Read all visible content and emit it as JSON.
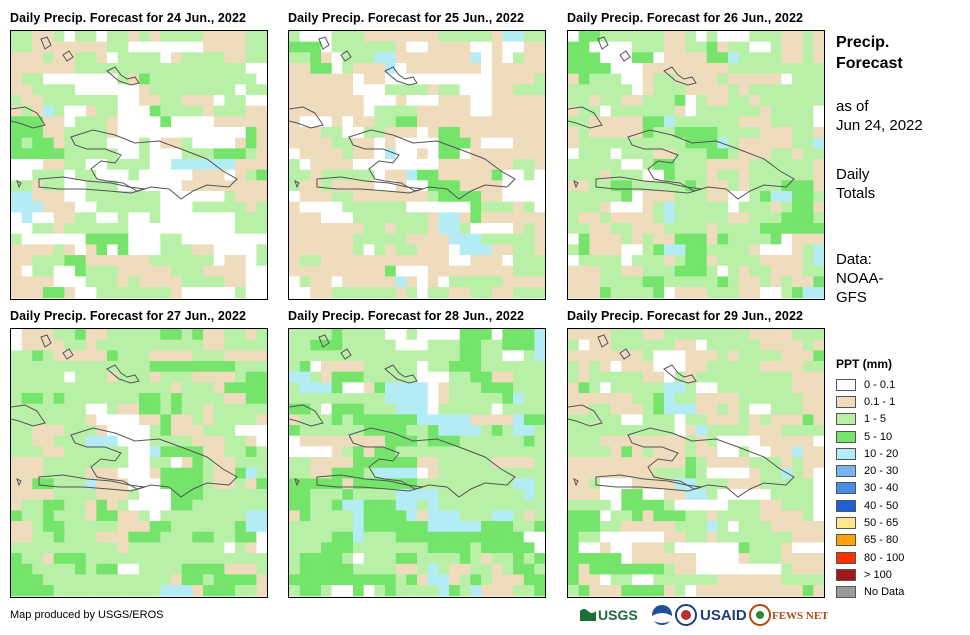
{
  "panels": [
    {
      "title": "Daily Precip. Forecast for 24 Jun., 2022"
    },
    {
      "title": "Daily Precip. Forecast for 25 Jun., 2022"
    },
    {
      "title": "Daily Precip. Forecast for 26 Jun., 2022"
    },
    {
      "title": "Daily Precip. Forecast for 27 Jun., 2022"
    },
    {
      "title": "Daily Precip. Forecast for 28 Jun., 2022"
    },
    {
      "title": "Daily Precip. Forecast for 29 Jun., 2022"
    }
  ],
  "side": {
    "title_line1": "Precip.",
    "title_line2": "Forecast",
    "asof_line1": "as of",
    "asof_line2": "Jun 24, 2022",
    "totals_line1": "Daily",
    "totals_line2": "Totals",
    "data_line1": "Data:",
    "data_line2": "NOAA-",
    "data_line3": "GFS"
  },
  "legend": {
    "title": "PPT (mm)",
    "items": [
      {
        "label": "0 - 0.1",
        "color": "#ffffff"
      },
      {
        "label": "0.1 - 1",
        "color": "#eedcbc"
      },
      {
        "label": "1 - 5",
        "color": "#b8f0a8"
      },
      {
        "label": "5 - 10",
        "color": "#74e46a"
      },
      {
        "label": "10 - 20",
        "color": "#b4ecf6"
      },
      {
        "label": "20 - 30",
        "color": "#78b4f0"
      },
      {
        "label": "30 - 40",
        "color": "#4a8ce6"
      },
      {
        "label": "40 - 50",
        "color": "#2060d4"
      },
      {
        "label": "50 - 65",
        "color": "#ffe68a"
      },
      {
        "label": "65 - 80",
        "color": "#ffa010"
      },
      {
        "label": "80 - 100",
        "color": "#ff3000"
      },
      {
        "label": "> 100",
        "color": "#a01818"
      },
      {
        "label": "No Data",
        "color": "#9a9a9a"
      }
    ]
  },
  "credit": "Map produced by USGS/EROS",
  "logos": {
    "usgs": "USGS",
    "usaid": "USAID",
    "fewsnet": "FEWS NET",
    "noaa_icon": "noaa-emblem-icon",
    "seal_icon": "us-seal-icon"
  }
}
